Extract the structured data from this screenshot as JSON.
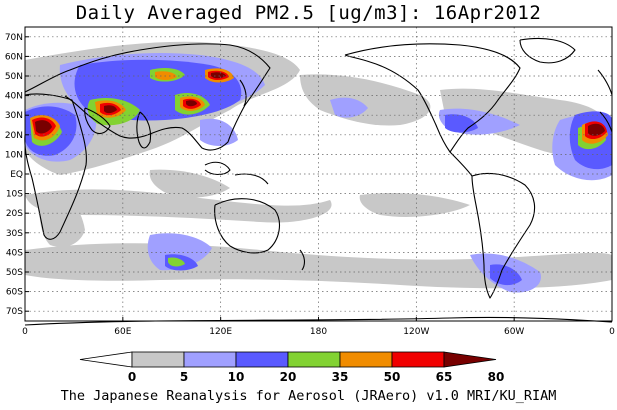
{
  "title": "Daily Averaged PM2.5 [ug/m3]: 16Apr2012",
  "footer": "The Japanese Reanalysis for Aerosol (JRAero) v1.0 MRI/KU_RIAM",
  "map": {
    "projection": "equirectangular",
    "lon_range": [
      0,
      360
    ],
    "lat_range": [
      -75,
      75
    ],
    "grid": true,
    "lat_ticks": [
      "70N",
      "60N",
      "50N",
      "40N",
      "30N",
      "20N",
      "10N",
      "EQ",
      "10S",
      "20S",
      "30S",
      "40S",
      "50S",
      "60S",
      "70S"
    ],
    "lat_values": [
      70,
      60,
      50,
      40,
      30,
      20,
      10,
      0,
      -10,
      -20,
      -30,
      -40,
      -50,
      -60,
      -70
    ],
    "lon_ticks": [
      "0",
      "60E",
      "120E",
      "180",
      "120W",
      "60W",
      "0"
    ],
    "lon_values": [
      0,
      60,
      120,
      180,
      240,
      300,
      360
    ]
  },
  "colorbar": {
    "levels": [
      "0",
      "5",
      "10",
      "20",
      "35",
      "50",
      "65",
      "80"
    ],
    "colors": [
      "#ffffff",
      "#c8c8c8",
      "#a0a0ff",
      "#5a5aff",
      "#82d232",
      "#f08c00",
      "#f00000",
      "#780000"
    ]
  }
}
